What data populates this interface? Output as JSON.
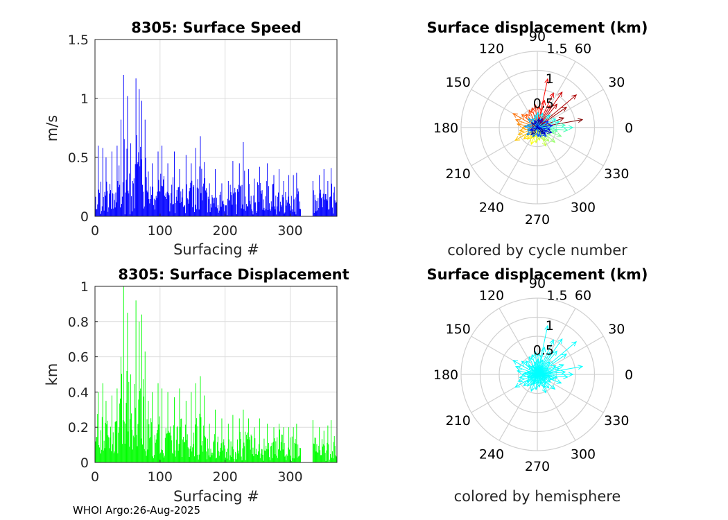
{
  "footer": "WHOI Argo:26-Aug-2025",
  "chart_data": [
    {
      "type": "bar",
      "title": "8305: Surface Speed",
      "xlabel": "Surfacing #",
      "ylabel": "m/s",
      "xlim": [
        0,
        372
      ],
      "ylim": [
        0,
        1.5
      ],
      "xticks": [
        0,
        100,
        200,
        300
      ],
      "yticks": [
        0,
        0.5,
        1,
        1.5
      ],
      "color": "#0000ff",
      "peaks": [
        [
          5,
          0.6
        ],
        [
          12,
          0.58
        ],
        [
          17,
          0.5
        ],
        [
          26,
          0.55
        ],
        [
          34,
          0.6
        ],
        [
          40,
          0.82
        ],
        [
          44,
          1.2
        ],
        [
          50,
          1.02
        ],
        [
          55,
          0.62
        ],
        [
          63,
          1.17
        ],
        [
          68,
          1.08
        ],
        [
          72,
          0.98
        ],
        [
          77,
          0.82
        ],
        [
          82,
          0.38
        ],
        [
          88,
          0.45
        ],
        [
          97,
          0.55
        ],
        [
          103,
          0.6
        ],
        [
          112,
          0.45
        ],
        [
          122,
          0.55
        ],
        [
          130,
          0.4
        ],
        [
          140,
          0.52
        ],
        [
          148,
          0.45
        ],
        [
          155,
          0.58
        ],
        [
          162,
          0.68
        ],
        [
          168,
          0.46
        ],
        [
          176,
          0.28
        ],
        [
          185,
          0.4
        ],
        [
          195,
          0.28
        ],
        [
          205,
          0.3
        ],
        [
          212,
          0.47
        ],
        [
          222,
          0.45
        ],
        [
          228,
          0.63
        ],
        [
          236,
          0.4
        ],
        [
          245,
          0.32
        ],
        [
          253,
          0.42
        ],
        [
          265,
          0.45
        ],
        [
          275,
          0.35
        ],
        [
          283,
          0.4
        ],
        [
          290,
          0.3
        ],
        [
          298,
          0.35
        ],
        [
          305,
          0.35
        ],
        [
          310,
          0.37
        ],
        [
          318,
          0.26
        ],
        [
          335,
          0.3
        ],
        [
          345,
          0.35
        ],
        [
          352,
          0.4
        ],
        [
          358,
          0.3
        ],
        [
          363,
          0.41
        ],
        [
          368,
          0.25
        ]
      ],
      "gap": [
        317,
        334
      ],
      "base_level": 0.1
    },
    {
      "type": "bar",
      "title": "8305: Surface Displacement",
      "xlabel": "Surfacing #",
      "ylabel": "km",
      "xlim": [
        0,
        372
      ],
      "ylim": [
        0,
        1
      ],
      "xticks": [
        0,
        100,
        200,
        300
      ],
      "yticks": [
        0,
        0.2,
        0.4,
        0.6,
        0.8,
        1
      ],
      "color": "#00ff00",
      "peaks": [
        [
          5,
          0.4
        ],
        [
          12,
          0.45
        ],
        [
          17,
          0.35
        ],
        [
          26,
          0.38
        ],
        [
          34,
          0.42
        ],
        [
          40,
          0.6
        ],
        [
          44,
          1.0
        ],
        [
          50,
          0.85
        ],
        [
          55,
          0.5
        ],
        [
          63,
          0.92
        ],
        [
          68,
          0.8
        ],
        [
          72,
          0.84
        ],
        [
          77,
          0.63
        ],
        [
          82,
          0.35
        ],
        [
          88,
          0.4
        ],
        [
          97,
          0.45
        ],
        [
          103,
          0.42
        ],
        [
          112,
          0.4
        ],
        [
          122,
          0.37
        ],
        [
          130,
          0.42
        ],
        [
          140,
          0.35
        ],
        [
          148,
          0.4
        ],
        [
          155,
          0.45
        ],
        [
          162,
          0.49
        ],
        [
          168,
          0.38
        ],
        [
          176,
          0.22
        ],
        [
          185,
          0.3
        ],
        [
          195,
          0.25
        ],
        [
          205,
          0.22
        ],
        [
          212,
          0.27
        ],
        [
          222,
          0.25
        ],
        [
          228,
          0.3
        ],
        [
          236,
          0.25
        ],
        [
          245,
          0.2
        ],
        [
          253,
          0.25
        ],
        [
          265,
          0.22
        ],
        [
          275,
          0.2
        ],
        [
          283,
          0.22
        ],
        [
          290,
          0.2
        ],
        [
          298,
          0.2
        ],
        [
          305,
          0.2
        ],
        [
          310,
          0.22
        ],
        [
          318,
          0.18
        ],
        [
          335,
          0.24
        ],
        [
          345,
          0.2
        ],
        [
          352,
          0.18
        ],
        [
          358,
          0.21
        ],
        [
          363,
          0.24
        ],
        [
          368,
          0.15
        ]
      ],
      "gap": [
        317,
        334
      ],
      "base_level": 0.1
    },
    {
      "type": "polar-compass",
      "title": "Surface displacement (km)",
      "caption": "colored by cycle number",
      "rmax": 1.5,
      "rticks": [
        0.5,
        1,
        1.5
      ],
      "rtick_labels": [
        "0.5",
        "1",
        "1.5"
      ],
      "angle_labels": [
        "0",
        "30",
        "60",
        "90",
        "120",
        "150",
        "180",
        "210",
        "240",
        "270",
        "300",
        "330"
      ],
      "color_mode": "jet",
      "vectors": [
        [
          10,
          0.9
        ],
        [
          20,
          0.55
        ],
        [
          35,
          0.7
        ],
        [
          40,
          1.0
        ],
        [
          50,
          0.6
        ],
        [
          55,
          0.85
        ],
        [
          60,
          0.5
        ],
        [
          65,
          0.75
        ],
        [
          75,
          0.55
        ],
        [
          78,
          0.98
        ],
        [
          85,
          0.42
        ],
        [
          95,
          0.45
        ],
        [
          105,
          0.4
        ],
        [
          115,
          0.38
        ],
        [
          130,
          0.35
        ],
        [
          140,
          0.4
        ],
        [
          150,
          0.55
        ],
        [
          160,
          0.45
        ],
        [
          170,
          0.4
        ],
        [
          180,
          0.3
        ],
        [
          190,
          0.35
        ],
        [
          200,
          0.4
        ],
        [
          210,
          0.5
        ],
        [
          220,
          0.35
        ],
        [
          230,
          0.3
        ],
        [
          240,
          0.25
        ],
        [
          250,
          0.35
        ],
        [
          255,
          0.2
        ],
        [
          265,
          0.3
        ],
        [
          280,
          0.25
        ],
        [
          295,
          0.4
        ],
        [
          300,
          0.3
        ],
        [
          310,
          0.35
        ],
        [
          320,
          0.45
        ],
        [
          330,
          0.3
        ],
        [
          340,
          0.5
        ],
        [
          345,
          0.35
        ],
        [
          350,
          0.4
        ],
        [
          355,
          0.6
        ],
        [
          5,
          0.55
        ],
        [
          0,
          0.7
        ],
        [
          15,
          0.45
        ],
        [
          25,
          0.4
        ],
        [
          45,
          0.35
        ],
        [
          70,
          0.3
        ],
        [
          88,
          0.3
        ],
        [
          100,
          0.25
        ],
        [
          120,
          0.2
        ],
        [
          135,
          0.25
        ],
        [
          165,
          0.2
        ],
        [
          175,
          0.25
        ],
        [
          195,
          0.2
        ],
        [
          215,
          0.25
        ],
        [
          245,
          0.2
        ],
        [
          275,
          0.18
        ],
        [
          290,
          0.2
        ],
        [
          315,
          0.25
        ],
        [
          335,
          0.2
        ],
        [
          30,
          0.25
        ],
        [
          8,
          0.3
        ],
        [
          352,
          0.25
        ],
        [
          200,
          0.15
        ],
        [
          110,
          0.15
        ],
        [
          60,
          0.2
        ],
        [
          -20,
          0.3
        ],
        [
          -40,
          0.2
        ],
        [
          80,
          0.18
        ],
        [
          140,
          0.15
        ],
        [
          230,
          0.18
        ],
        [
          320,
          0.15
        ]
      ]
    },
    {
      "type": "polar-compass",
      "title": "Surface displacement (km)",
      "caption": "colored by hemisphere",
      "rmax": 1.5,
      "rticks": [
        0.5,
        1,
        1.5
      ],
      "rtick_labels": [
        "0.5",
        "1",
        "1.5"
      ],
      "angle_labels": [
        "0",
        "30",
        "60",
        "90",
        "120",
        "150",
        "180",
        "210",
        "240",
        "270",
        "300",
        "330"
      ],
      "color_mode": "single",
      "color": "#00ffff",
      "vectors": [
        [
          10,
          0.9
        ],
        [
          20,
          0.55
        ],
        [
          35,
          0.7
        ],
        [
          40,
          1.0
        ],
        [
          50,
          0.6
        ],
        [
          55,
          0.85
        ],
        [
          60,
          0.5
        ],
        [
          65,
          0.75
        ],
        [
          75,
          0.55
        ],
        [
          78,
          0.98
        ],
        [
          85,
          0.42
        ],
        [
          95,
          0.45
        ],
        [
          105,
          0.4
        ],
        [
          115,
          0.38
        ],
        [
          130,
          0.35
        ],
        [
          140,
          0.4
        ],
        [
          150,
          0.55
        ],
        [
          160,
          0.45
        ],
        [
          170,
          0.4
        ],
        [
          180,
          0.3
        ],
        [
          190,
          0.35
        ],
        [
          200,
          0.4
        ],
        [
          210,
          0.5
        ],
        [
          220,
          0.35
        ],
        [
          230,
          0.3
        ],
        [
          240,
          0.25
        ],
        [
          250,
          0.35
        ],
        [
          255,
          0.2
        ],
        [
          265,
          0.3
        ],
        [
          280,
          0.25
        ],
        [
          295,
          0.4
        ],
        [
          300,
          0.3
        ],
        [
          310,
          0.35
        ],
        [
          320,
          0.45
        ],
        [
          330,
          0.3
        ],
        [
          340,
          0.5
        ],
        [
          345,
          0.35
        ],
        [
          350,
          0.4
        ],
        [
          355,
          0.6
        ],
        [
          5,
          0.55
        ],
        [
          0,
          0.7
        ],
        [
          15,
          0.45
        ],
        [
          25,
          0.4
        ],
        [
          45,
          0.35
        ],
        [
          70,
          0.3
        ],
        [
          88,
          0.3
        ],
        [
          100,
          0.25
        ],
        [
          120,
          0.2
        ],
        [
          135,
          0.25
        ],
        [
          165,
          0.2
        ],
        [
          175,
          0.25
        ],
        [
          195,
          0.2
        ],
        [
          215,
          0.25
        ],
        [
          245,
          0.2
        ],
        [
          275,
          0.18
        ],
        [
          290,
          0.2
        ],
        [
          315,
          0.25
        ],
        [
          335,
          0.2
        ],
        [
          30,
          0.25
        ],
        [
          8,
          0.3
        ],
        [
          352,
          0.25
        ],
        [
          200,
          0.15
        ],
        [
          110,
          0.15
        ],
        [
          60,
          0.2
        ],
        [
          -20,
          0.3
        ],
        [
          -40,
          0.2
        ],
        [
          80,
          0.18
        ],
        [
          140,
          0.15
        ],
        [
          230,
          0.18
        ],
        [
          320,
          0.15
        ]
      ]
    }
  ]
}
